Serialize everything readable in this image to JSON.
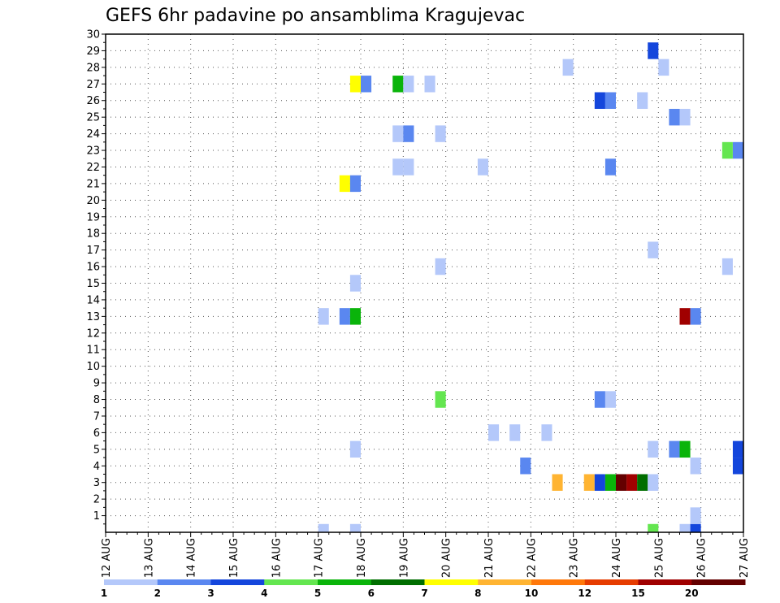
{
  "chart_data": {
    "type": "heatmap",
    "title": "GEFS 6hr padavine po ansamblima Kragujevac",
    "xlabel": "",
    "ylabel": "",
    "x_tick_labels": [
      "12 AUG",
      "13 AUG",
      "14 AUG",
      "15 AUG",
      "16 AUG",
      "17 AUG",
      "18 AUG",
      "19 AUG",
      "20 AUG",
      "21 AUG",
      "22 AUG",
      "23 AUG",
      "24 AUG",
      "25 AUG",
      "26 AUG",
      "27 AUG"
    ],
    "x_range_days": [
      0,
      15
    ],
    "y_tick_labels": [
      "1",
      "2",
      "3",
      "4",
      "5",
      "6",
      "7",
      "8",
      "9",
      "10",
      "11",
      "12",
      "13",
      "14",
      "15",
      "16",
      "17",
      "18",
      "19",
      "20",
      "21",
      "22",
      "23",
      "24",
      "25",
      "26",
      "27",
      "28",
      "29",
      "30"
    ],
    "y_range": [
      0,
      30
    ],
    "grid": true,
    "legend": {
      "placement": "bottom",
      "labels": [
        "1",
        "2",
        "3",
        "4",
        "5",
        "6",
        "7",
        "8",
        "10",
        "12",
        "15",
        "20"
      ],
      "colors": [
        "#b4c8fa",
        "#5a87f0",
        "#1446dc",
        "#64e650",
        "#0ab40a",
        "#006e00",
        "#ffff00",
        "#ffb432",
        "#ff780a",
        "#e63c00",
        "#a00000",
        "#640000"
      ]
    },
    "cells": [
      {
        "day": 5.125,
        "member": 0,
        "color": "#b4c8fa"
      },
      {
        "day": 5.125,
        "member": 13,
        "color": "#b4c8fa"
      },
      {
        "day": 5.625,
        "member": 13,
        "color": "#5a87f0"
      },
      {
        "day": 5.625,
        "member": 21,
        "color": "#ffff00"
      },
      {
        "day": 5.875,
        "member": 0,
        "color": "#b4c8fa"
      },
      {
        "day": 5.875,
        "member": 5,
        "color": "#b4c8fa"
      },
      {
        "day": 5.875,
        "member": 13,
        "color": "#0ab40a"
      },
      {
        "day": 5.875,
        "member": 15,
        "color": "#b4c8fa"
      },
      {
        "day": 5.875,
        "member": 21,
        "color": "#5a87f0"
      },
      {
        "day": 5.875,
        "member": 27,
        "color": "#ffff00"
      },
      {
        "day": 6.125,
        "member": 27,
        "color": "#5a87f0"
      },
      {
        "day": 6.875,
        "member": 22,
        "color": "#b4c8fa"
      },
      {
        "day": 6.875,
        "member": 24,
        "color": "#b4c8fa"
      },
      {
        "day": 6.875,
        "member": 27,
        "color": "#0ab40a"
      },
      {
        "day": 7.125,
        "member": 22,
        "color": "#b4c8fa"
      },
      {
        "day": 7.125,
        "member": 24,
        "color": "#5a87f0"
      },
      {
        "day": 7.125,
        "member": 27,
        "color": "#b4c8fa"
      },
      {
        "day": 7.625,
        "member": 27,
        "color": "#b4c8fa"
      },
      {
        "day": 7.875,
        "member": 8,
        "color": "#64e650"
      },
      {
        "day": 7.875,
        "member": 16,
        "color": "#b4c8fa"
      },
      {
        "day": 7.875,
        "member": 24,
        "color": "#b4c8fa"
      },
      {
        "day": 8.875,
        "member": 22,
        "color": "#b4c8fa"
      },
      {
        "day": 9.125,
        "member": 6,
        "color": "#b4c8fa"
      },
      {
        "day": 9.625,
        "member": 6,
        "color": "#b4c8fa"
      },
      {
        "day": 9.875,
        "member": 4,
        "color": "#5a87f0"
      },
      {
        "day": 10.375,
        "member": 6,
        "color": "#b4c8fa"
      },
      {
        "day": 10.625,
        "member": 3,
        "color": "#ffb432"
      },
      {
        "day": 10.875,
        "member": 28,
        "color": "#b4c8fa"
      },
      {
        "day": 11.375,
        "member": 3,
        "color": "#ffb432"
      },
      {
        "day": 11.625,
        "member": 3,
        "color": "#1446dc"
      },
      {
        "day": 11.625,
        "member": 8,
        "color": "#5a87f0"
      },
      {
        "day": 11.625,
        "member": 26,
        "color": "#1446dc"
      },
      {
        "day": 11.875,
        "member": 3,
        "color": "#0ab40a"
      },
      {
        "day": 11.875,
        "member": 8,
        "color": "#b4c8fa"
      },
      {
        "day": 11.875,
        "member": 22,
        "color": "#5a87f0"
      },
      {
        "day": 11.875,
        "member": 26,
        "color": "#5a87f0"
      },
      {
        "day": 12.125,
        "member": 3,
        "color": "#640000"
      },
      {
        "day": 12.375,
        "member": 3,
        "color": "#a00000"
      },
      {
        "day": 12.625,
        "member": 3,
        "color": "#006e00"
      },
      {
        "day": 12.625,
        "member": 26,
        "color": "#b4c8fa"
      },
      {
        "day": 12.875,
        "member": 0,
        "color": "#64e650"
      },
      {
        "day": 12.875,
        "member": 3,
        "color": "#b4c8fa"
      },
      {
        "day": 12.875,
        "member": 5,
        "color": "#b4c8fa"
      },
      {
        "day": 12.875,
        "member": 17,
        "color": "#b4c8fa"
      },
      {
        "day": 12.875,
        "member": 29,
        "color": "#1446dc"
      },
      {
        "day": 13.125,
        "member": 28,
        "color": "#b4c8fa"
      },
      {
        "day": 13.375,
        "member": 5,
        "color": "#5a87f0"
      },
      {
        "day": 13.375,
        "member": 25,
        "color": "#5a87f0"
      },
      {
        "day": 13.625,
        "member": 0,
        "color": "#b4c8fa"
      },
      {
        "day": 13.625,
        "member": 5,
        "color": "#0ab40a"
      },
      {
        "day": 13.625,
        "member": 13,
        "color": "#a00000"
      },
      {
        "day": 13.625,
        "member": 25,
        "color": "#b4c8fa"
      },
      {
        "day": 13.875,
        "member": 0,
        "color": "#1446dc"
      },
      {
        "day": 13.875,
        "member": 1,
        "color": "#b4c8fa"
      },
      {
        "day": 13.875,
        "member": 4,
        "color": "#b4c8fa"
      },
      {
        "day": 13.875,
        "member": 13,
        "color": "#5a87f0"
      },
      {
        "day": 14.625,
        "member": 16,
        "color": "#b4c8fa"
      },
      {
        "day": 14.625,
        "member": 23,
        "color": "#64e650"
      },
      {
        "day": 14.875,
        "member": 4,
        "color": "#1446dc"
      },
      {
        "day": 14.875,
        "member": 5,
        "color": "#1446dc"
      },
      {
        "day": 14.875,
        "member": 23,
        "color": "#5a87f0"
      }
    ]
  }
}
